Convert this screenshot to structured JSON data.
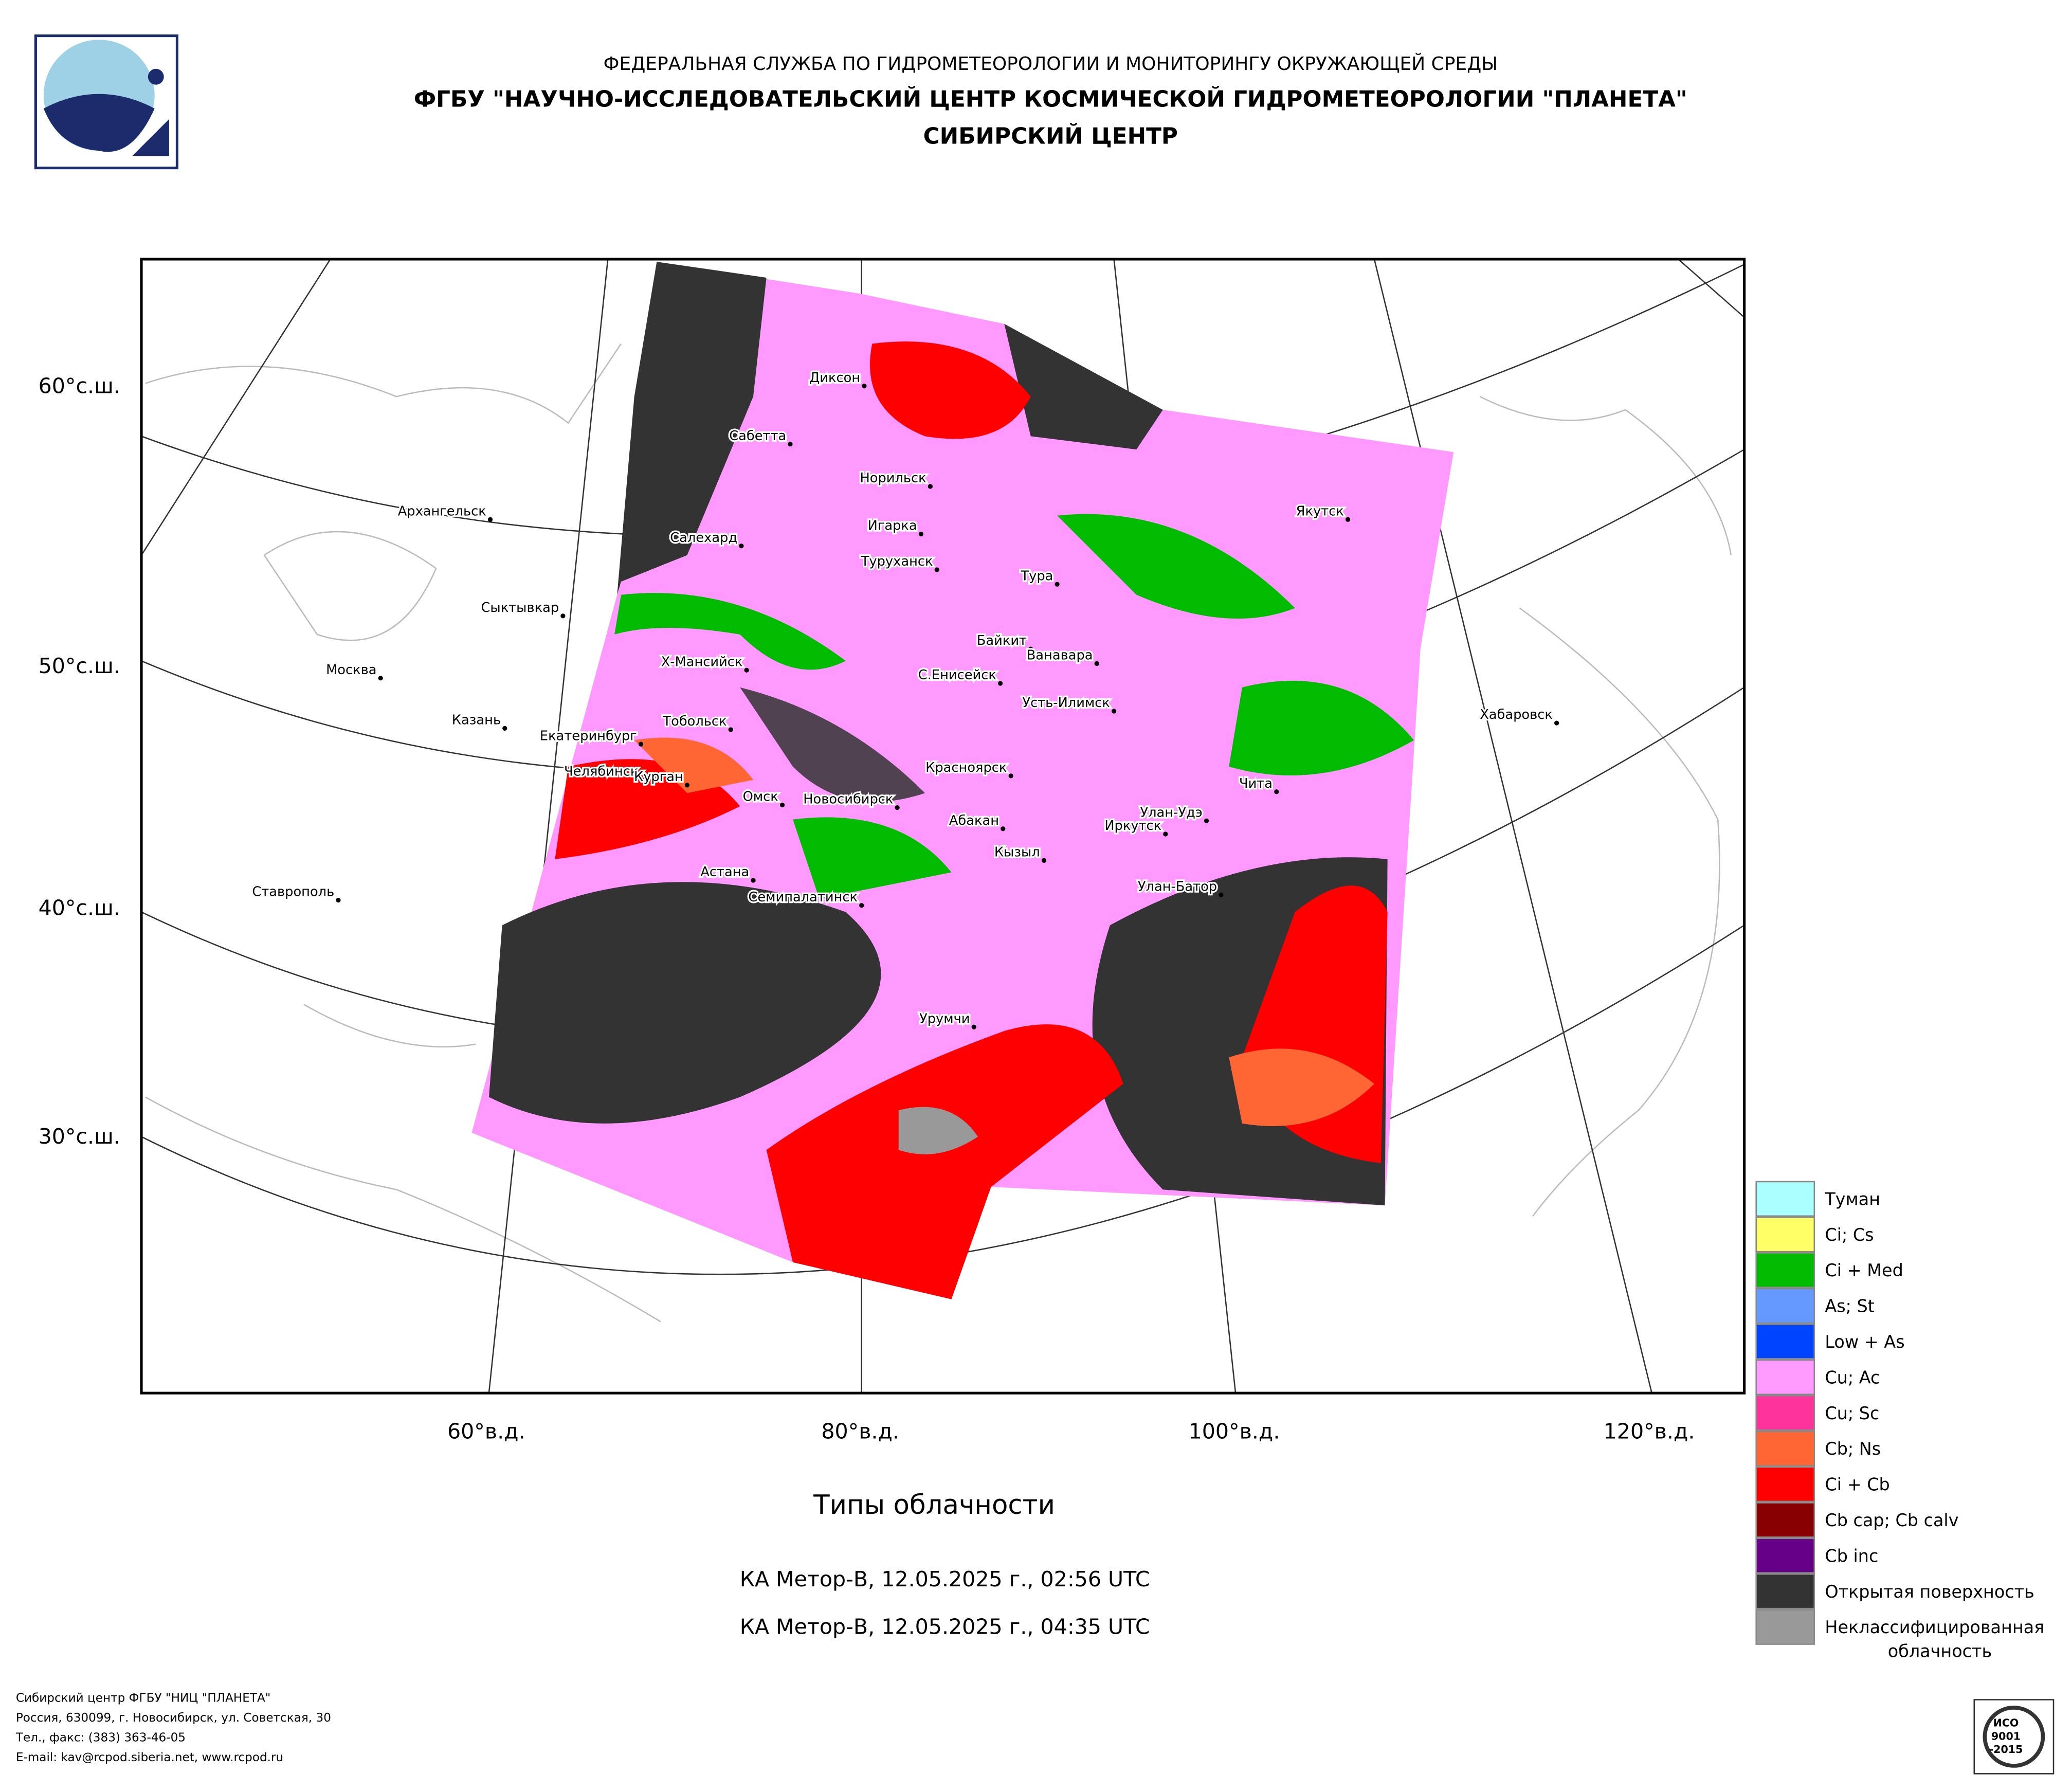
{
  "header": {
    "line1": "ФЕДЕРАЛЬНАЯ СЛУЖБА ПО ГИДРОМЕТЕОРОЛОГИИ И МОНИТОРИНГУ ОКРУЖАЮЩЕЙ СРЕДЫ",
    "line2": "ФГБУ \"НАУЧНО-ИССЛЕДОВАТЕЛЬСКИЙ ЦЕНТР КОСМИЧЕСКОЙ ГИДРОМЕТЕОРОЛОГИИ \"ПЛАНЕТА\"",
    "line3": "СИБИРСКИЙ ЦЕНТР"
  },
  "map": {
    "lat_labels": [
      "60°с.ш.",
      "50°с.ш.",
      "40°с.ш.",
      "30°с.ш."
    ],
    "lon_labels": [
      "60°в.д.",
      "80°в.д.",
      "100°в.д.",
      "120°в.д."
    ],
    "cities": [
      "Диксон",
      "Сабетта",
      "Норильск",
      "Архангельск",
      "Игарка",
      "Салехард",
      "Туруханск",
      "Тура",
      "Сыктывкар",
      "Якутск",
      "Байкит",
      "Ванавара",
      "Москва",
      "Х-Мансийск",
      "С.Енисейск",
      "Усть-Илимск",
      "Казань",
      "Тобольск",
      "Екатеринбург",
      "Хабаровск",
      "Челябинск",
      "Курган",
      "Красноярск",
      "Чита",
      "Омск",
      "Новосибирск",
      "Абакан",
      "Улан-Удэ",
      "Иркутск",
      "Кызыл",
      "Астана",
      "Ставрополь",
      "Семипалатинск",
      "Улан-Батор",
      "Урумчи"
    ]
  },
  "legend": [
    {
      "label": "Туман",
      "color": "#aaffff"
    },
    {
      "label": "Ci; Cs",
      "color": "#ffff66"
    },
    {
      "label": "Ci + Med",
      "color": "#00bb00"
    },
    {
      "label": "As; St",
      "color": "#6699ff"
    },
    {
      "label": "Low + As",
      "color": "#0044ff"
    },
    {
      "label": "Cu; Ac",
      "color": "#ff99ff"
    },
    {
      "label": "Cu; Sc",
      "color": "#ff3399"
    },
    {
      "label": "Cb; Ns",
      "color": "#ff6633"
    },
    {
      "label": "Ci + Cb",
      "color": "#ff0000"
    },
    {
      "label": "Cb cap; Cb calv",
      "color": "#880000"
    },
    {
      "label": "Cb inc",
      "color": "#660088"
    },
    {
      "label": "Открытая поверхность",
      "color": "#333333"
    },
    {
      "lines": [
        "Неклассифицированная",
        "облачность"
      ],
      "color": "#999999"
    }
  ],
  "caption": {
    "title": "Типы облачности",
    "pass1": "КА Метор-В, 12.05.2025 г., 02:56 UTC",
    "pass2": "КА Метор-В, 12.05.2025 г., 04:35 UTC"
  },
  "footer": [
    "Сибирский центр ФГБУ \"НИЦ \"ПЛАНЕТА\"",
    "Россия, 630099, г. Новосибирск, ул. Советская, 30",
    "Тел., факс: (383) 363-46-05",
    "E-mail: kav@rcpod.siberia.net, www.rcpod.ru"
  ],
  "iso_badge": [
    "ИСО",
    "9001",
    "-2015"
  ]
}
